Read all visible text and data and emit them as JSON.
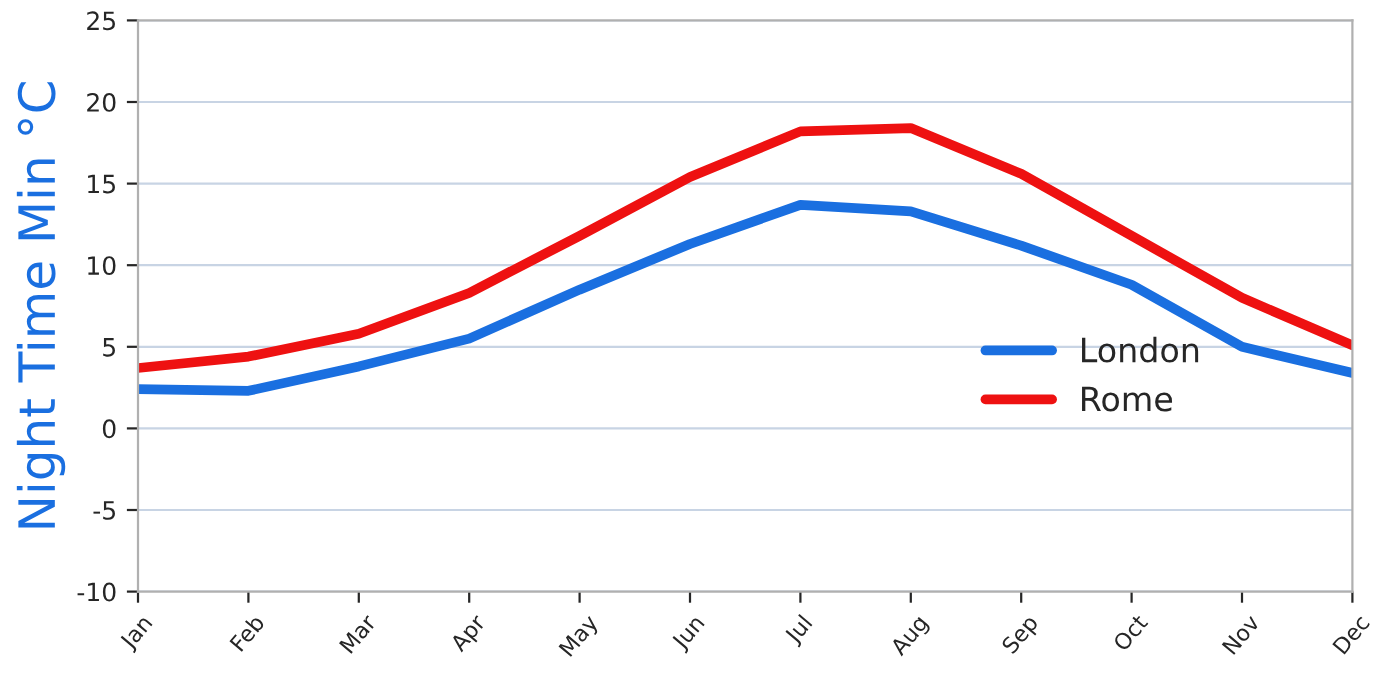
{
  "chart_data": {
    "type": "line",
    "ylabel": "Night Time Min °C",
    "categories": [
      "Jan",
      "Feb",
      "Mar",
      "Apr",
      "May",
      "Jun",
      "Jul",
      "Aug",
      "Sep",
      "Oct",
      "Nov",
      "Dec"
    ],
    "series": [
      {
        "name": "London",
        "color": "#1a6fe0",
        "values": [
          2.4,
          2.3,
          3.8,
          5.5,
          8.5,
          11.3,
          13.7,
          13.3,
          11.2,
          8.8,
          5.0,
          3.4
        ]
      },
      {
        "name": "Rome",
        "color": "#ee1111",
        "values": [
          3.7,
          4.4,
          5.8,
          8.3,
          11.8,
          15.4,
          18.2,
          18.4,
          15.6,
          11.8,
          8.0,
          5.1
        ]
      }
    ],
    "ylim": [
      -10,
      25
    ],
    "yticks": [
      -10,
      -5,
      0,
      5,
      10,
      15,
      20,
      25
    ],
    "grid": "y",
    "legend": "center right",
    "marker": "none",
    "line_style": "solid"
  }
}
